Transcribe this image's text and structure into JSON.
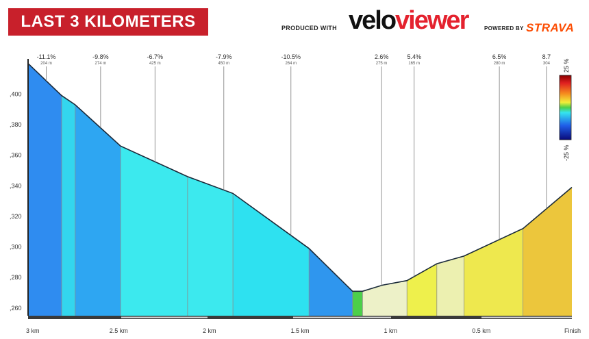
{
  "header": {
    "title": "LAST 3 KILOMETERS",
    "produced_with": "PRODUCED WITH",
    "logo_velo": "velo",
    "logo_viewer": "viewer",
    "powered_by": "POWERED BY",
    "strava": "STRAVA"
  },
  "legend": {
    "top_label": "25 %",
    "bottom_label": "-25 %"
  },
  "chart_data": {
    "type": "area",
    "x_unit": "km to finish",
    "x_ticks": [
      "3 km",
      "2.5 km",
      "2 km",
      "1.5 km",
      "1 km",
      "0.5 km",
      "Finish"
    ],
    "x_tick_values": [
      3,
      2.5,
      2,
      1.5,
      1,
      0.5,
      0
    ],
    "y_ticks": [
      ",260",
      ",280",
      ",300",
      ",320",
      ",340",
      ",360",
      ",380",
      ",400"
    ],
    "y_tick_values": [
      260,
      280,
      300,
      320,
      340,
      360,
      380,
      400
    ],
    "ylim": [
      255,
      423
    ],
    "xlim": [
      3,
      0
    ],
    "profile": [
      {
        "x": 3.0,
        "y": 420
      },
      {
        "x": 2.815,
        "y": 399
      },
      {
        "x": 2.74,
        "y": 393
      },
      {
        "x": 2.49,
        "y": 366
      },
      {
        "x": 2.12,
        "y": 346
      },
      {
        "x": 1.87,
        "y": 335
      },
      {
        "x": 1.45,
        "y": 299
      },
      {
        "x": 1.21,
        "y": 271
      },
      {
        "x": 1.155,
        "y": 271
      },
      {
        "x": 1.045,
        "y": 275
      },
      {
        "x": 0.91,
        "y": 278
      },
      {
        "x": 0.745,
        "y": 289
      },
      {
        "x": 0.595,
        "y": 294
      },
      {
        "x": 0.27,
        "y": 312
      },
      {
        "x": 0.0,
        "y": 339
      }
    ],
    "segments": [
      {
        "from": 3.0,
        "to": 2.815,
        "color": "#2f8cf0"
      },
      {
        "from": 2.815,
        "to": 2.74,
        "color": "#33d6ee"
      },
      {
        "from": 2.74,
        "to": 2.49,
        "color": "#2ea6f2"
      },
      {
        "from": 2.49,
        "to": 2.12,
        "color": "#3ce9ee"
      },
      {
        "from": 2.12,
        "to": 1.87,
        "color": "#3ce9ee"
      },
      {
        "from": 1.87,
        "to": 1.45,
        "color": "#2ee1f0"
      },
      {
        "from": 1.45,
        "to": 1.21,
        "color": "#2f96ee"
      },
      {
        "from": 1.21,
        "to": 1.155,
        "color": "#4ccf4a"
      },
      {
        "from": 1.155,
        "to": 0.91,
        "color": "#edf1c8"
      },
      {
        "from": 0.91,
        "to": 0.745,
        "color": "#eef04c"
      },
      {
        "from": 0.745,
        "to": 0.595,
        "color": "#ecf0b0"
      },
      {
        "from": 0.595,
        "to": 0.27,
        "color": "#eee84e"
      },
      {
        "from": 0.27,
        "to": 0.0,
        "color": "#ecc63c"
      }
    ],
    "annotations": [
      {
        "x": 2.9,
        "grade": "-11.1%",
        "length": "204 m"
      },
      {
        "x": 2.6,
        "grade": "-9.8%",
        "length": "274 m"
      },
      {
        "x": 2.3,
        "grade": "-6.7%",
        "length": "425 m"
      },
      {
        "x": 1.92,
        "grade": "-7.9%",
        "length": "450 m"
      },
      {
        "x": 1.55,
        "grade": "-10.5%",
        "length": "264 m"
      },
      {
        "x": 1.05,
        "grade": "2.6%",
        "length": "275 m"
      },
      {
        "x": 0.87,
        "grade": "5.4%",
        "length": "165 m"
      },
      {
        "x": 0.4,
        "grade": "6.5%",
        "length": "280 m"
      },
      {
        "x": 0.14,
        "grade": "8.7",
        "length": "304"
      }
    ]
  }
}
